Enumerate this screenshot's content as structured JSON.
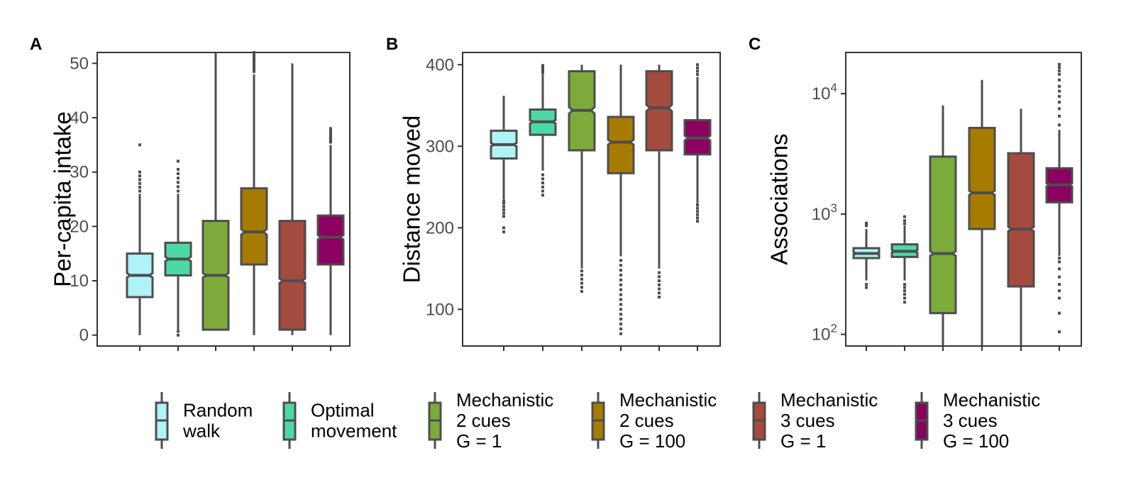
{
  "legend": {
    "entries": [
      {
        "lines": [
          "Random",
          "walk"
        ],
        "color": "#aef3f7"
      },
      {
        "lines": [
          "Optimal",
          "movement"
        ],
        "color": "#4dd9a6"
      },
      {
        "lines": [
          "Mechanistic",
          "2 cues",
          "G = 1"
        ],
        "color": "#7cab3a"
      },
      {
        "lines": [
          "Mechanistic",
          "2 cues",
          "G = 100"
        ],
        "color": "#a67c00"
      },
      {
        "lines": [
          "Mechanistic",
          "3 cues",
          "G = 1"
        ],
        "color": "#a54a3f"
      },
      {
        "lines": [
          "Mechanistic",
          "3 cues",
          "G = 100"
        ],
        "color": "#8b0060"
      }
    ]
  },
  "chart_data": [
    {
      "type": "box",
      "panel_label": "A",
      "ylabel": "Per-capita intake",
      "ylim": [
        -2,
        52
      ],
      "scale": "linear",
      "yticks": [
        {
          "value": 0,
          "label": "0"
        },
        {
          "value": 10,
          "label": "10"
        },
        {
          "value": 20,
          "label": "20"
        },
        {
          "value": 30,
          "label": "30"
        },
        {
          "value": 40,
          "label": "40"
        },
        {
          "value": 50,
          "label": "50"
        }
      ],
      "boxes": [
        {
          "min": 0,
          "q1": 7,
          "median": 11,
          "q3": 15,
          "max": 26,
          "notch": [
            10.6,
            11.4
          ],
          "outliers": [
            26.5,
            27.2,
            27.9,
            28.6,
            29.3,
            30,
            35
          ]
        },
        {
          "min": 1,
          "q1": 11,
          "median": 14,
          "q3": 17,
          "max": 26,
          "notch": [
            13.6,
            14.4
          ],
          "outliers": [
            0,
            0.7,
            26.5,
            27.3,
            28.1,
            28.9,
            29.7,
            30.5,
            32
          ]
        },
        {
          "min": 1,
          "q1": 1,
          "median": 11,
          "q3": 21,
          "max": 52,
          "notch": [
            10.6,
            11.4
          ],
          "outliers": []
        },
        {
          "min": 0,
          "q1": 13,
          "median": 19,
          "q3": 27,
          "max": 48,
          "notch": [
            18.5,
            19.5
          ],
          "outliers": [
            48.5,
            49,
            49.5,
            50,
            50.5,
            51,
            51.5,
            52
          ]
        },
        {
          "min": 0,
          "q1": 1,
          "median": 10,
          "q3": 21,
          "max": 50,
          "notch": [
            9.6,
            10.4
          ],
          "outliers": []
        },
        {
          "min": 0,
          "q1": 13,
          "median": 18,
          "q3": 22,
          "max": 35,
          "notch": [
            17.6,
            18.4
          ],
          "outliers": [
            35.5,
            36,
            36.5,
            37,
            37.5,
            38
          ]
        }
      ]
    },
    {
      "type": "box",
      "panel_label": "B",
      "ylabel": "Distance moved",
      "ylim": [
        55,
        415
      ],
      "scale": "linear",
      "yticks": [
        {
          "value": 100,
          "label": "100"
        },
        {
          "value": 200,
          "label": "200"
        },
        {
          "value": 300,
          "label": "300"
        },
        {
          "value": 400,
          "label": "400"
        }
      ],
      "boxes": [
        {
          "min": 235,
          "q1": 285,
          "median": 302,
          "q3": 319,
          "max": 362,
          "notch": [
            300,
            304
          ],
          "outliers": [
            195,
            200,
            214,
            218,
            222,
            226,
            230,
            233
          ]
        },
        {
          "min": 270,
          "q1": 314,
          "median": 330,
          "q3": 345,
          "max": 388,
          "notch": [
            328,
            332
          ],
          "outliers": [
            240,
            245,
            250,
            255,
            260,
            265,
            390,
            393,
            396,
            399
          ]
        },
        {
          "min": 150,
          "q1": 295,
          "median": 344,
          "q3": 392,
          "max": 400,
          "notch": [
            340,
            348
          ],
          "outliers": [
            122,
            127,
            132,
            137,
            142,
            147
          ]
        },
        {
          "min": 165,
          "q1": 267,
          "median": 305,
          "q3": 336,
          "max": 400,
          "notch": [
            302,
            308
          ],
          "outliers": [
            70,
            76,
            82,
            88,
            94,
            100,
            106,
            112,
            118,
            124,
            130,
            136,
            142,
            148,
            154,
            160
          ]
        },
        {
          "min": 150,
          "q1": 295,
          "median": 347,
          "q3": 392,
          "max": 400,
          "notch": [
            343,
            351
          ],
          "outliers": [
            115,
            120,
            125,
            130,
            135,
            140,
            145
          ]
        },
        {
          "min": 230,
          "q1": 290,
          "median": 310,
          "q3": 332,
          "max": 385,
          "notch": [
            307,
            313
          ],
          "outliers": [
            208,
            212,
            216,
            220,
            224,
            228,
            388,
            392,
            396,
            400
          ]
        }
      ]
    },
    {
      "type": "box",
      "panel_label": "C",
      "ylabel": "Associations",
      "ylim": [
        80,
        22000
      ],
      "scale": "log",
      "yticks": [
        {
          "value": 100,
          "base": "10",
          "exp": "2"
        },
        {
          "value": 1000,
          "base": "10",
          "exp": "3"
        },
        {
          "value": 10000,
          "base": "10",
          "exp": "4"
        }
      ],
      "boxes": [
        {
          "min": 280,
          "q1": 430,
          "median": 470,
          "q3": 520,
          "max": 750,
          "notch": [
            460,
            480
          ],
          "outliers": [
            245,
            260,
            800,
            840
          ]
        },
        {
          "min": 280,
          "q1": 440,
          "median": 490,
          "q3": 560,
          "max": 800,
          "notch": [
            478,
            502
          ],
          "outliers": [
            185,
            200,
            215,
            230,
            245,
            260,
            830,
            880,
            950
          ]
        },
        {
          "min": 80,
          "q1": 150,
          "median": 470,
          "q3": 3000,
          "max": 8000,
          "notch": [
            450,
            490
          ],
          "outliers": []
        },
        {
          "min": 80,
          "q1": 750,
          "median": 1500,
          "q3": 5200,
          "max": 13000,
          "notch": [
            1440,
            1560
          ],
          "outliers": []
        },
        {
          "min": 80,
          "q1": 250,
          "median": 750,
          "q3": 3200,
          "max": 7500,
          "notch": [
            720,
            780
          ],
          "outliers": []
        },
        {
          "min": 450,
          "q1": 1250,
          "median": 1750,
          "q3": 2400,
          "max": 5000,
          "notch": [
            1700,
            1800
          ],
          "outliers": [
            105,
            150,
            200,
            230,
            260,
            300,
            350,
            400,
            430,
            5500,
            6500,
            7500,
            8500,
            9500,
            10500,
            11500,
            13000,
            14500,
            15500,
            16500,
            17500
          ]
        }
      ]
    }
  ]
}
